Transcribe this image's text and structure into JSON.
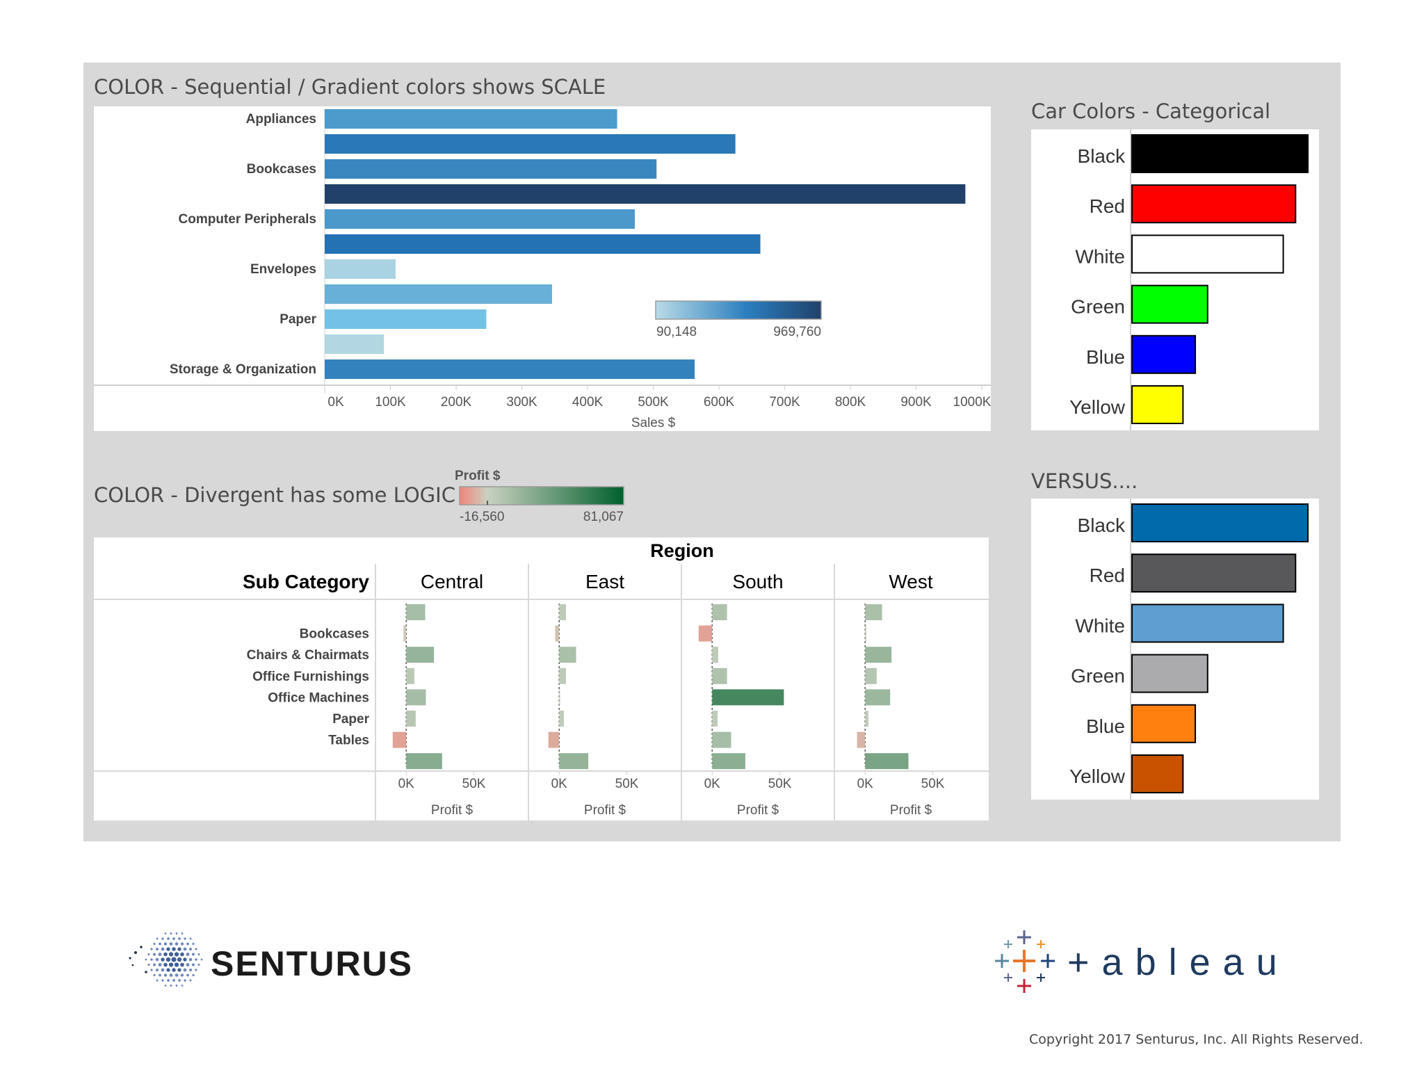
{
  "sequential": {
    "title": "COLOR - Sequential / Gradient colors shows SCALE",
    "legend": {
      "min_label": "90,148",
      "max_label": "969,760",
      "min_color": "#b9dbe7",
      "mid_color": "#2b7fbf",
      "max_color": "#21416b"
    }
  },
  "divergent": {
    "title": "COLOR - Divergent has some LOGIC",
    "legend": {
      "title": "Profit $",
      "min_label": "-16,560",
      "max_label": "81,067",
      "neg_color": "#f2837a",
      "zero_color": "#c9d1c0",
      "pos_color": "#00602d"
    },
    "region_label": "Region",
    "subcat_label": "Sub Category"
  },
  "categorical": {
    "title": "Car Colors - Categorical",
    "versus_title": "VERSUS...."
  },
  "footer": {
    "senturus_text": "SENTURUS",
    "tableau_text": "+ableau",
    "copyright": "Copyright 2017  Senturus, Inc.  All Rights Reserved."
  },
  "chart_data": [
    {
      "type": "bar",
      "orientation": "horizontal",
      "category_labels": [
        "Appliances",
        "",
        "Bookcases",
        "",
        "Computer Peripherals",
        "",
        "Envelopes",
        "",
        "Paper",
        "",
        "Storage & Organization"
      ],
      "values": [
        445000,
        625000,
        505000,
        975000,
        472000,
        663000,
        108000,
        346000,
        246000,
        90148,
        563000
      ],
      "colors": [
        "#4d9bcc",
        "#2a78b7",
        "#3a87c0",
        "#21416b",
        "#4b98cb",
        "#2472b4",
        "#a9d3e2",
        "#68b0d8",
        "#74c1e6",
        "#b2d6e2",
        "#3381bd"
      ],
      "xlabel": "Sales $",
      "xticks": [
        "0K",
        "100K",
        "200K",
        "300K",
        "400K",
        "500K",
        "600K",
        "700K",
        "800K",
        "900K",
        "1000K"
      ],
      "xlim": [
        0,
        1000000
      ]
    },
    {
      "type": "bar",
      "orientation": "horizontal",
      "title": "Region",
      "rows": [
        "",
        "Bookcases",
        "Chairs & Chairmats",
        "Office Furnishings",
        "Office Machines",
        "Paper",
        "Tables",
        ""
      ],
      "series": [
        {
          "name": "Central",
          "values": [
            14000,
            -2000,
            20500,
            6000,
            14500,
            7000,
            -10000,
            26500
          ]
        },
        {
          "name": "East",
          "values": [
            5000,
            -3000,
            12500,
            5000,
            700,
            3500,
            -8000,
            21500
          ]
        },
        {
          "name": "South",
          "values": [
            11000,
            -10000,
            4500,
            11000,
            53000,
            4000,
            14000,
            24500
          ]
        },
        {
          "name": "West",
          "values": [
            12500,
            900,
            19500,
            8500,
            18500,
            2500,
            -6000,
            32000
          ]
        }
      ],
      "xlabel": "Profit $",
      "xticks": [
        "0K",
        "50K"
      ],
      "xlim": [
        -16560,
        81067
      ]
    },
    {
      "type": "bar",
      "orientation": "horizontal",
      "title": "Car Colors - Categorical",
      "categories": [
        "Black",
        "Red",
        "White",
        "Green",
        "Blue",
        "Yellow"
      ],
      "values": [
        100,
        93,
        86,
        43,
        36,
        29
      ],
      "colors": [
        "#000000",
        "#ff0000",
        "#ffffff",
        "#00ff00",
        "#0000ff",
        "#ffff00"
      ]
    },
    {
      "type": "bar",
      "orientation": "horizontal",
      "title": "VERSUS....",
      "categories": [
        "Black",
        "Red",
        "White",
        "Green",
        "Blue",
        "Yellow"
      ],
      "values": [
        100,
        93,
        86,
        43,
        36,
        29
      ],
      "colors": [
        "#006aaa",
        "#58585b",
        "#5f9ed1",
        "#ababae",
        "#ff800e",
        "#c85200"
      ]
    }
  ]
}
